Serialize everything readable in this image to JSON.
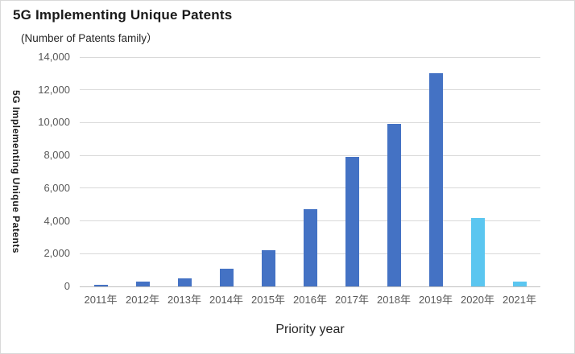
{
  "chart": {
    "title": "5G Implementing Unique Patents",
    "subtitle": "(Number of Patents family）",
    "y_axis_title": "5G Implementing Unique Patents",
    "x_axis_title": "Priority year"
  },
  "chart_data": {
    "type": "bar",
    "title": "5G Implementing Unique Patents",
    "subtitle": "(Number of Patents family）",
    "categories": [
      "2011年",
      "2012年",
      "2013年",
      "2014年",
      "2015年",
      "2016年",
      "2017年",
      "2018年",
      "2019年",
      "2020年",
      "2021年"
    ],
    "values": [
      100,
      300,
      500,
      1100,
      2200,
      4700,
      7900,
      9900,
      13000,
      4200,
      300
    ],
    "bar_colors": [
      "#4472C4",
      "#4472C4",
      "#4472C4",
      "#4472C4",
      "#4472C4",
      "#4472C4",
      "#4472C4",
      "#4472C4",
      "#4472C4",
      "#5BC6F0",
      "#5BC6F0"
    ],
    "xlabel": "Priority year",
    "ylabel": "5G Implementing Unique Patents",
    "ylim": [
      0,
      14000
    ],
    "ytick_interval": 2000,
    "yticks": {
      "labels": [
        "14,000",
        "12,000",
        "10,000",
        "8,000",
        "6,000",
        "4,000",
        "2,000",
        "0"
      ],
      "values": [
        14000,
        12000,
        10000,
        8000,
        6000,
        4000,
        2000,
        0
      ]
    },
    "grid": "horizontal",
    "legend": "none",
    "colors": {
      "default_bar": "#4472C4",
      "highlight_bar": "#5BC6F0",
      "gridline": "#D9D9D9",
      "axis_line": "#C0C0C0",
      "tick_text": "#595959",
      "title_text": "#1A1A1A"
    }
  }
}
